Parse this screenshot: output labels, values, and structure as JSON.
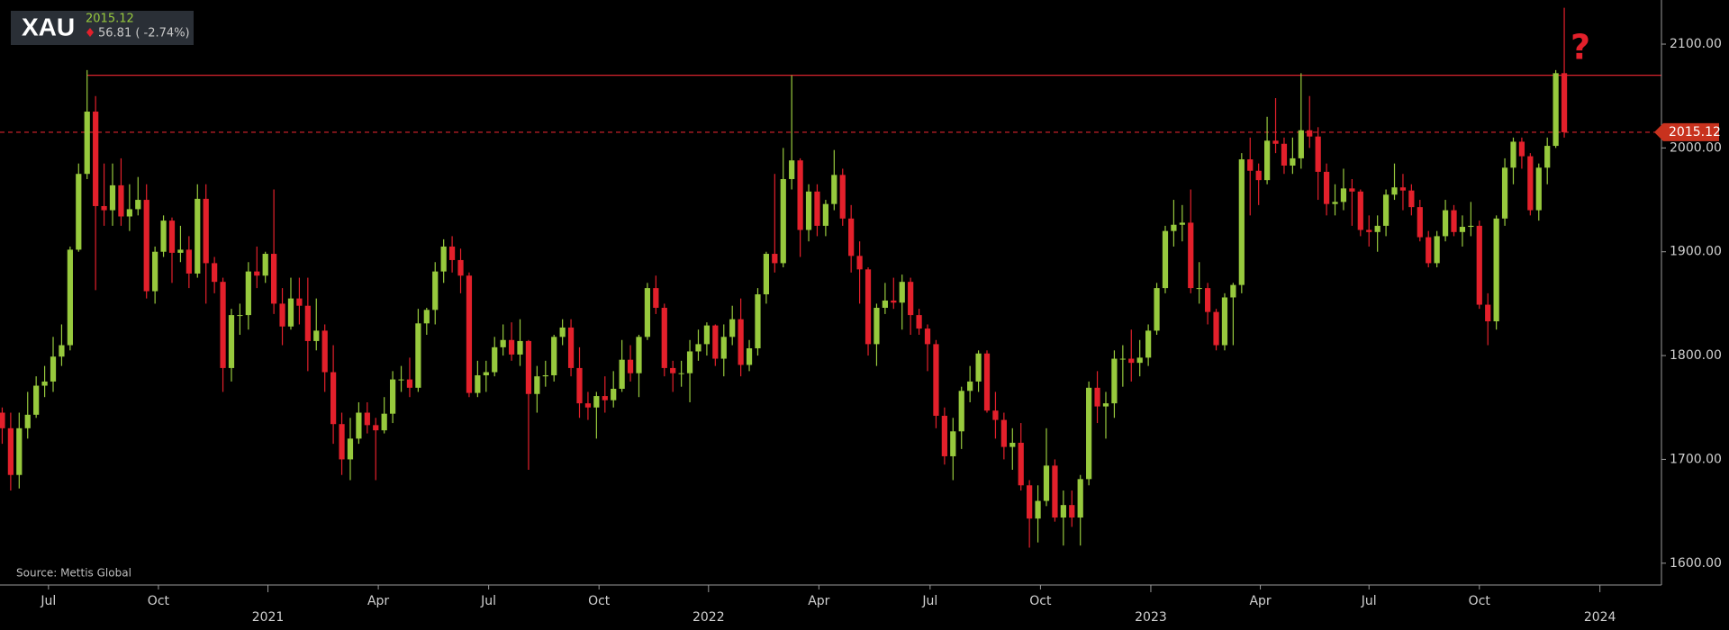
{
  "chart_data": {
    "type": "candlestick",
    "symbol": "XAU",
    "last_price": 2015.12,
    "change_text": "56.81 ( -2.74%)",
    "annotation": "?",
    "source": "Source: Mettis Global",
    "resistance_level": 2070,
    "up_color": "#97c93d",
    "down_color": "#e3202b",
    "line_color": "#d9232d",
    "ylim": [
      1579,
      2142.5
    ],
    "yticks": [
      {
        "value": 1600,
        "label": "1600.00"
      },
      {
        "value": 1700,
        "label": "1700.00"
      },
      {
        "value": 1800,
        "label": "1800.00"
      },
      {
        "value": 1900,
        "label": "1900.00"
      },
      {
        "value": 2000,
        "label": "2000.00"
      },
      {
        "value": 2100,
        "label": "2100.00"
      }
    ],
    "xlim": [
      -0.26,
      195.45
    ],
    "xticks": [
      {
        "value": 5.45,
        "label": "Jul"
      },
      {
        "value": 18.4,
        "label": "Oct"
      },
      {
        "value": 44.3,
        "label": "Apr"
      },
      {
        "value": 57.3,
        "label": "Jul"
      },
      {
        "value": 70.3,
        "label": "Oct"
      },
      {
        "value": 96.2,
        "label": "Apr"
      },
      {
        "value": 109.3,
        "label": "Jul"
      },
      {
        "value": 122.3,
        "label": "Oct"
      },
      {
        "value": 148.2,
        "label": "Apr"
      },
      {
        "value": 161.0,
        "label": "Jul"
      },
      {
        "value": 174.0,
        "label": "Oct"
      }
    ],
    "year_ticks": [
      {
        "value": 31.3,
        "label": "2021"
      },
      {
        "value": 83.2,
        "label": "2022"
      },
      {
        "value": 135.3,
        "label": "2023"
      },
      {
        "value": 188.2,
        "label": "2024"
      }
    ],
    "open": [
      1745,
      1730,
      1685,
      1730,
      1743,
      1771,
      1775,
      1799,
      1810,
      1902,
      1975,
      2035,
      1944,
      1940,
      1964,
      1934,
      1941,
      1950,
      1862,
      1900,
      1930,
      1899,
      1902,
      1879,
      1951,
      1889,
      1871,
      1788,
      1839,
      1839,
      1881,
      1877,
      1898,
      1850,
      1828,
      1855,
      1848,
      1814,
      1824,
      1784,
      1734,
      1700,
      1720,
      1745,
      1733,
      1728,
      1744,
      1777,
      1777,
      1769,
      1831,
      1844,
      1881,
      1905,
      1892,
      1877,
      1764,
      1781,
      1784,
      1808,
      1815,
      1801,
      1814,
      1763,
      1780,
      1781,
      1818,
      1827,
      1788,
      1754,
      1750,
      1761,
      1757,
      1768,
      1796,
      1783,
      1818,
      1865,
      1846,
      1788,
      1783,
      1783,
      1804,
      1811,
      1829,
      1797,
      1818,
      1835,
      1791,
      1807,
      1859,
      1898,
      1889,
      1970,
      1988,
      1921,
      1958,
      1925,
      1946,
      1974,
      1932,
      1896,
      1883,
      1811,
      1846,
      1853,
      1851,
      1871,
      1839,
      1826,
      1811,
      1742,
      1703,
      1727,
      1766,
      1775,
      1802,
      1747,
      1738,
      1712,
      1716,
      1675,
      1643,
      1660,
      1694,
      1644,
      1656,
      1644,
      1681,
      1769,
      1751,
      1754,
      1797,
      1797,
      1793,
      1798,
      1824,
      1865,
      1920,
      1926,
      1928,
      1865,
      1865,
      1842,
      1810,
      1856,
      1868,
      1989,
      1978,
      1969,
      2007,
      2004,
      1983,
      1990,
      2017,
      2011,
      1977,
      1946,
      1948,
      1961,
      1958,
      1921,
      1919,
      1925,
      1955,
      1962,
      1959,
      1943,
      1914,
      1889,
      1915,
      1940,
      1919,
      1924,
      1925,
      1849,
      1833,
      1932,
      1981,
      2006,
      1992,
      1940,
      1981,
      2002,
      2072
    ],
    "high": [
      1750,
      1745,
      1745,
      1765,
      1780,
      1790,
      1818,
      1830,
      1905,
      1985,
      2075,
      2050,
      1985,
      1985,
      1990,
      1965,
      1972,
      1965,
      1905,
      1935,
      1933,
      1925,
      1915,
      1965,
      1965,
      1895,
      1875,
      1845,
      1850,
      1890,
      1905,
      1900,
      1960,
      1865,
      1875,
      1875,
      1875,
      1855,
      1830,
      1810,
      1745,
      1740,
      1755,
      1755,
      1740,
      1760,
      1785,
      1790,
      1798,
      1845,
      1846,
      1890,
      1912,
      1915,
      1903,
      1880,
      1795,
      1795,
      1818,
      1830,
      1832,
      1835,
      1815,
      1790,
      1795,
      1820,
      1835,
      1835,
      1808,
      1765,
      1765,
      1780,
      1785,
      1815,
      1810,
      1820,
      1870,
      1877,
      1850,
      1795,
      1795,
      1815,
      1825,
      1832,
      1830,
      1830,
      1848,
      1855,
      1815,
      1865,
      1900,
      1975,
      2000,
      2070,
      1990,
      1965,
      1965,
      1950,
      1998,
      1980,
      1945,
      1910,
      1885,
      1850,
      1870,
      1875,
      1878,
      1875,
      1845,
      1830,
      1815,
      1750,
      1740,
      1770,
      1790,
      1805,
      1805,
      1765,
      1745,
      1730,
      1735,
      1680,
      1675,
      1730,
      1700,
      1670,
      1670,
      1685,
      1775,
      1785,
      1765,
      1805,
      1810,
      1825,
      1815,
      1830,
      1870,
      1925,
      1950,
      1945,
      1960,
      1890,
      1870,
      1845,
      1860,
      1870,
      1995,
      2010,
      1985,
      2030,
      2048,
      2010,
      2010,
      2072,
      2050,
      2020,
      1985,
      1965,
      1980,
      1970,
      1960,
      1935,
      1935,
      1960,
      1985,
      1975,
      1965,
      1950,
      1920,
      1920,
      1950,
      1945,
      1935,
      1948,
      1930,
      1860,
      1935,
      1990,
      2010,
      2010,
      1995,
      1985,
      2010,
      2075,
      2135
    ],
    "low": [
      1715,
      1670,
      1672,
      1720,
      1740,
      1760,
      1765,
      1790,
      1805,
      1900,
      1970,
      1863,
      1925,
      1925,
      1925,
      1920,
      1935,
      1855,
      1850,
      1895,
      1870,
      1890,
      1865,
      1875,
      1850,
      1860,
      1765,
      1775,
      1820,
      1825,
      1865,
      1870,
      1840,
      1810,
      1825,
      1830,
      1785,
      1805,
      1765,
      1715,
      1685,
      1680,
      1715,
      1725,
      1680,
      1725,
      1735,
      1765,
      1760,
      1765,
      1820,
      1830,
      1870,
      1880,
      1860,
      1760,
      1760,
      1765,
      1780,
      1800,
      1795,
      1790,
      1690,
      1745,
      1770,
      1775,
      1810,
      1780,
      1740,
      1738,
      1720,
      1745,
      1750,
      1765,
      1775,
      1760,
      1815,
      1840,
      1780,
      1765,
      1770,
      1755,
      1795,
      1800,
      1790,
      1780,
      1810,
      1780,
      1785,
      1800,
      1850,
      1880,
      1885,
      1960,
      1895,
      1910,
      1915,
      1915,
      1940,
      1925,
      1880,
      1850,
      1800,
      1790,
      1840,
      1845,
      1825,
      1820,
      1820,
      1785,
      1730,
      1695,
      1680,
      1710,
      1755,
      1765,
      1745,
      1720,
      1700,
      1690,
      1670,
      1615,
      1620,
      1655,
      1640,
      1617,
      1635,
      1617,
      1675,
      1735,
      1720,
      1740,
      1770,
      1775,
      1780,
      1790,
      1820,
      1860,
      1905,
      1910,
      1860,
      1850,
      1830,
      1805,
      1805,
      1810,
      1860,
      1935,
      1945,
      1965,
      1995,
      1975,
      1975,
      1980,
      2000,
      1950,
      1935,
      1935,
      1940,
      1925,
      1915,
      1905,
      1900,
      1915,
      1950,
      1940,
      1935,
      1910,
      1885,
      1885,
      1910,
      1915,
      1905,
      1915,
      1845,
      1810,
      1825,
      1925,
      1965,
      1980,
      1935,
      1930,
      1965,
      2000,
      2010
    ],
    "close": [
      1730,
      1685,
      1730,
      1743,
      1771,
      1775,
      1799,
      1810,
      1902,
      1975,
      2035,
      1944,
      1940,
      1964,
      1934,
      1941,
      1950,
      1862,
      1900,
      1930,
      1899,
      1902,
      1879,
      1951,
      1889,
      1871,
      1788,
      1839,
      1839,
      1881,
      1877,
      1898,
      1850,
      1828,
      1855,
      1848,
      1814,
      1824,
      1784,
      1734,
      1700,
      1720,
      1745,
      1733,
      1728,
      1744,
      1777,
      1777,
      1769,
      1831,
      1844,
      1881,
      1905,
      1892,
      1877,
      1764,
      1781,
      1784,
      1808,
      1815,
      1801,
      1814,
      1763,
      1780,
      1781,
      1818,
      1827,
      1788,
      1754,
      1750,
      1761,
      1757,
      1768,
      1796,
      1783,
      1818,
      1865,
      1846,
      1788,
      1783,
      1783,
      1804,
      1811,
      1829,
      1797,
      1818,
      1835,
      1791,
      1807,
      1859,
      1898,
      1889,
      1970,
      1988,
      1921,
      1958,
      1925,
      1946,
      1974,
      1932,
      1896,
      1883,
      1811,
      1846,
      1853,
      1851,
      1871,
      1839,
      1826,
      1811,
      1742,
      1703,
      1727,
      1766,
      1775,
      1802,
      1747,
      1738,
      1712,
      1716,
      1675,
      1643,
      1660,
      1694,
      1644,
      1656,
      1644,
      1681,
      1769,
      1751,
      1754,
      1797,
      1797,
      1793,
      1798,
      1824,
      1865,
      1920,
      1926,
      1928,
      1865,
      1865,
      1842,
      1810,
      1856,
      1868,
      1989,
      1978,
      1969,
      2007,
      2004,
      1983,
      1990,
      2017,
      2011,
      1977,
      1946,
      1948,
      1961,
      1958,
      1921,
      1919,
      1925,
      1955,
      1962,
      1959,
      1943,
      1914,
      1889,
      1915,
      1940,
      1919,
      1924,
      1925,
      1849,
      1833,
      1932,
      1981,
      2006,
      1992,
      1940,
      1981,
      2002,
      2072,
      2015.12
    ]
  }
}
